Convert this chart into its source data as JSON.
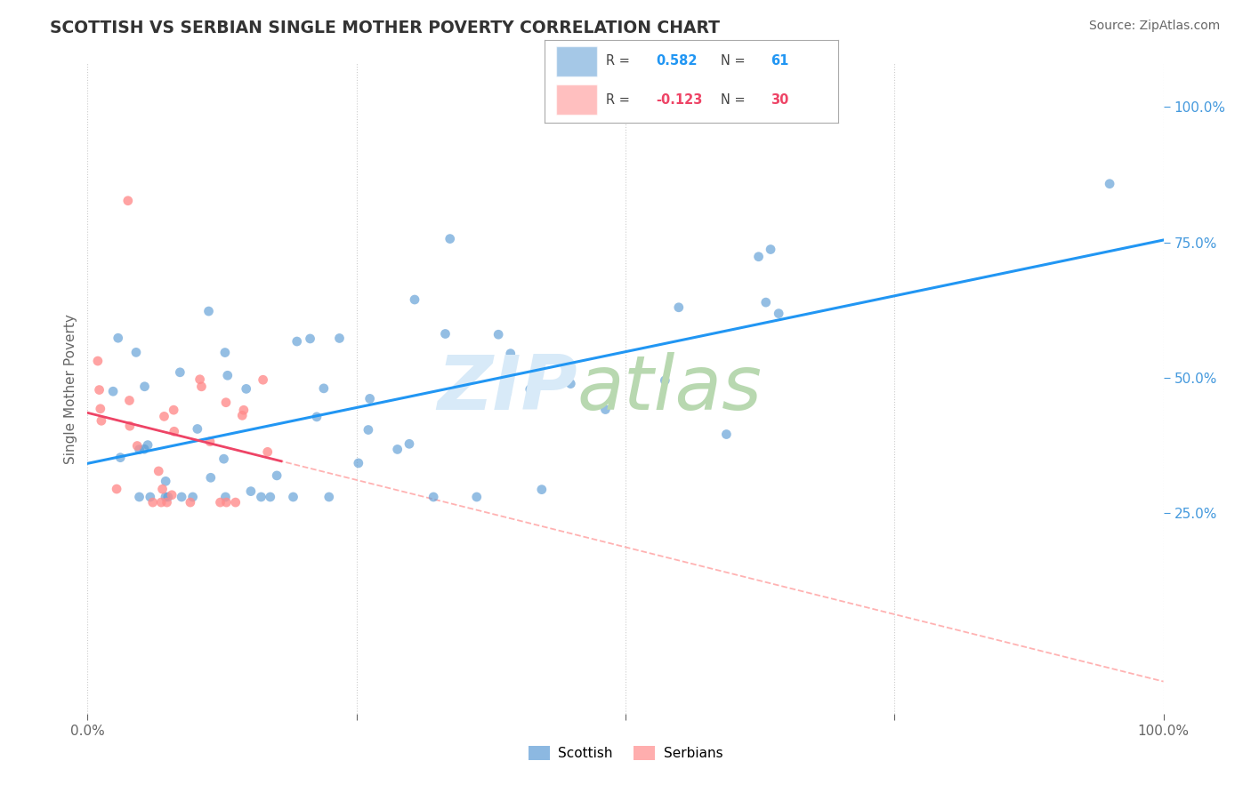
{
  "title": "SCOTTISH VS SERBIAN SINGLE MOTHER POVERTY CORRELATION CHART",
  "source": "Source: ZipAtlas.com",
  "ylabel": "Single Mother Poverty",
  "xlim": [
    0.0,
    1.0
  ],
  "ylim": [
    -0.12,
    1.08
  ],
  "x_ticks": [
    0.0,
    0.25,
    0.5,
    0.75,
    1.0
  ],
  "x_tick_labels": [
    "0.0%",
    "",
    "",
    "",
    "100.0%"
  ],
  "y_ticks_right": [
    0.25,
    0.5,
    0.75,
    1.0
  ],
  "y_tick_labels_right": [
    "25.0%",
    "50.0%",
    "75.0%",
    "100.0%"
  ],
  "scottish_color": "#5B9BD5",
  "serbian_color": "#FF8C8C",
  "blue_line_color": "#2196F3",
  "red_line_color": "#EE4466",
  "dash_line_color": "#FFAAAA",
  "scottish_R": 0.582,
  "scottish_N": 61,
  "serbian_R": -0.123,
  "serbian_N": 30,
  "background_color": "#FFFFFF",
  "grid_color": "#CCCCCC",
  "legend_border_color": "#AAAAAA",
  "watermark_zip_color": "#D8EAF8",
  "watermark_atlas_color": "#B8D8B0",
  "title_color": "#333333",
  "source_color": "#666666",
  "ylabel_color": "#666666",
  "tick_color": "#666666",
  "right_tick_color": "#4499DD"
}
